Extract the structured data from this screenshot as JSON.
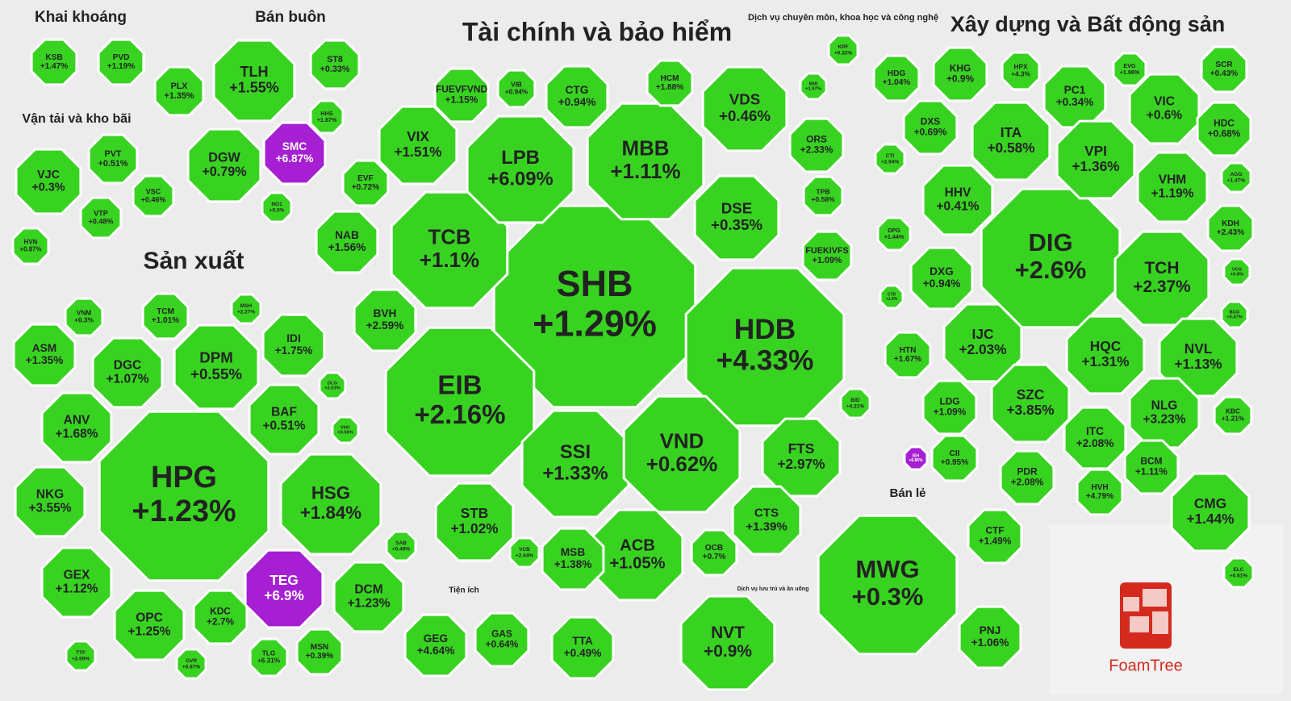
{
  "cell_color": "#38d321",
  "sectors": [
    {
      "title": "Khai khoáng",
      "stocks": [
        {
          "ticker": "KSB",
          "change": "+1.47%"
        },
        {
          "ticker": "PVD",
          "change": "+1.19%"
        }
      ]
    },
    {
      "title": "Bán buôn",
      "stocks": [
        {
          "ticker": "TLH",
          "change": "+1.55%"
        },
        {
          "ticker": "PLX",
          "change": "+1.35%"
        },
        {
          "ticker": "ST8",
          "change": "+0.33%"
        },
        {
          "ticker": "DGW",
          "change": "+0.79%"
        },
        {
          "ticker": "SMC",
          "change": "+6.87%",
          "color": "#a61fd3"
        },
        {
          "ticker": "HHS",
          "change": "+1.87%"
        },
        {
          "ticker": "NO1",
          "change": "+0.3%"
        }
      ]
    },
    {
      "title": "Vận tải và kho bãi",
      "stocks": [
        {
          "ticker": "VJC",
          "change": "+0.3%"
        },
        {
          "ticker": "PVT",
          "change": "+0.51%"
        },
        {
          "ticker": "VSC",
          "change": "+0.46%"
        },
        {
          "ticker": "VTP",
          "change": "+0.48%"
        },
        {
          "ticker": "HVN",
          "change": "+0.87%"
        }
      ]
    },
    {
      "title": "Tài chính và bảo hiểm",
      "stocks": [
        {
          "ticker": "SHB",
          "change": "+1.29%"
        },
        {
          "ticker": "HDB",
          "change": "+4.33%"
        },
        {
          "ticker": "EIB",
          "change": "+2.16%"
        },
        {
          "ticker": "TCB",
          "change": "+1.1%"
        },
        {
          "ticker": "LPB",
          "change": "+6.09%"
        },
        {
          "ticker": "MBB",
          "change": "+1.11%"
        },
        {
          "ticker": "VIX",
          "change": "+1.51%"
        },
        {
          "ticker": "VDS",
          "change": "+0.46%"
        },
        {
          "ticker": "DSE",
          "change": "+0.35%"
        },
        {
          "ticker": "ORS",
          "change": "+2.33%"
        },
        {
          "ticker": "TPB",
          "change": "+0.58%"
        },
        {
          "ticker": "FUEKIVFS",
          "change": "+1.09%"
        },
        {
          "ticker": "BMI",
          "change": "+1.97%"
        },
        {
          "ticker": "HCM",
          "change": "+1.88%"
        },
        {
          "ticker": "CTG",
          "change": "+0.94%"
        },
        {
          "ticker": "VIB",
          "change": "+0.94%"
        },
        {
          "ticker": "FUEVFVND",
          "change": "+1.15%"
        },
        {
          "ticker": "EVF",
          "change": "+0.72%"
        },
        {
          "ticker": "NAB",
          "change": "+1.56%"
        },
        {
          "ticker": "BVH",
          "change": "+2.59%"
        },
        {
          "ticker": "SSI",
          "change": "+1.33%"
        },
        {
          "ticker": "VND",
          "change": "+0.62%"
        },
        {
          "ticker": "FTS",
          "change": "+2.97%"
        },
        {
          "ticker": "CTS",
          "change": "+1.39%"
        },
        {
          "ticker": "OCB",
          "change": "+0.7%"
        },
        {
          "ticker": "ACB",
          "change": "+1.05%"
        },
        {
          "ticker": "MSB",
          "change": "+1.38%"
        },
        {
          "ticker": "STB",
          "change": "+1.02%"
        },
        {
          "ticker": "VCB",
          "change": "+2.44%"
        },
        {
          "ticker": "BID",
          "change": "+4.21%"
        }
      ]
    },
    {
      "title": "Sản xuất",
      "stocks": [
        {
          "ticker": "HPG",
          "change": "+1.23%"
        },
        {
          "ticker": "HSG",
          "change": "+1.84%"
        },
        {
          "ticker": "DPM",
          "change": "+0.55%"
        },
        {
          "ticker": "DGC",
          "change": "+1.07%"
        },
        {
          "ticker": "ASM",
          "change": "+1.35%"
        },
        {
          "ticker": "ANV",
          "change": "+1.68%"
        },
        {
          "ticker": "NKG",
          "change": "+3.55%"
        },
        {
          "ticker": "GEX",
          "change": "+1.12%"
        },
        {
          "ticker": "OPC",
          "change": "+1.25%"
        },
        {
          "ticker": "KDC",
          "change": "+2.7%"
        },
        {
          "ticker": "TEG",
          "change": "+6.9%",
          "color": "#a61fd3"
        },
        {
          "ticker": "DCM",
          "change": "+1.23%"
        },
        {
          "ticker": "MSN",
          "change": "+0.39%"
        },
        {
          "ticker": "TLG",
          "change": "+6.31%"
        },
        {
          "ticker": "GVR",
          "change": "+0.87%"
        },
        {
          "ticker": "TTF",
          "change": "+2.09%"
        },
        {
          "ticker": "BAF",
          "change": "+0.51%"
        },
        {
          "ticker": "IDI",
          "change": "+1.75%"
        },
        {
          "ticker": "VHC",
          "change": "+0.56%"
        },
        {
          "ticker": "DLG",
          "change": "+2.03%"
        },
        {
          "ticker": "SAB",
          "change": "+0.49%"
        },
        {
          "ticker": "TCM",
          "change": "+1.01%"
        },
        {
          "ticker": "VNM",
          "change": "+0.3%"
        },
        {
          "ticker": "MSH",
          "change": "+2.27%"
        }
      ]
    },
    {
      "title": "Dịch vụ chuyên môn, khoa học và công nghệ",
      "stocks": [
        {
          "ticker": "KPF",
          "change": "+0.32%"
        }
      ]
    },
    {
      "title": "Xây dựng và Bất động sản",
      "stocks": [
        {
          "ticker": "DIG",
          "change": "+2.6%"
        },
        {
          "ticker": "TCH",
          "change": "+2.37%"
        },
        {
          "ticker": "HDG",
          "change": "+1.04%"
        },
        {
          "ticker": "KHG",
          "change": "+0.9%"
        },
        {
          "ticker": "HPX",
          "change": "+4.3%"
        },
        {
          "ticker": "EVG",
          "change": "+1.98%"
        },
        {
          "ticker": "SCR",
          "change": "+0.43%"
        },
        {
          "ticker": "PC1",
          "change": "+0.34%"
        },
        {
          "ticker": "DXS",
          "change": "+0.69%"
        },
        {
          "ticker": "ITA",
          "change": "+0.58%"
        },
        {
          "ticker": "VIC",
          "change": "+0.6%"
        },
        {
          "ticker": "HDC",
          "change": "+0.68%"
        },
        {
          "ticker": "VPI",
          "change": "+1.36%"
        },
        {
          "ticker": "CTI",
          "change": "+2.94%"
        },
        {
          "ticker": "HHV",
          "change": "+0.41%"
        },
        {
          "ticker": "VHM",
          "change": "+1.19%"
        },
        {
          "ticker": "AGG",
          "change": "+1.47%"
        },
        {
          "ticker": "DPG",
          "change": "+1.44%"
        },
        {
          "ticker": "KDH",
          "change": "+2.43%"
        },
        {
          "ticker": "DXG",
          "change": "+0.94%"
        },
        {
          "ticker": "VCG",
          "change": "+0.8%"
        },
        {
          "ticker": "CTD",
          "change": "+1.4%"
        },
        {
          "ticker": "BCG",
          "change": "+0.47%"
        },
        {
          "ticker": "IJC",
          "change": "+2.03%"
        },
        {
          "ticker": "HQC",
          "change": "+1.31%"
        },
        {
          "ticker": "NVL",
          "change": "+1.13%"
        },
        {
          "ticker": "HTN",
          "change": "+1.67%"
        },
        {
          "ticker": "SZC",
          "change": "+3.85%"
        },
        {
          "ticker": "LDG",
          "change": "+1.09%"
        },
        {
          "ticker": "NLG",
          "change": "+3.23%"
        },
        {
          "ticker": "KBC",
          "change": "+1.21%"
        },
        {
          "ticker": "ITC",
          "change": "+2.08%"
        },
        {
          "ticker": "CII",
          "change": "+0.95%"
        },
        {
          "ticker": "BCM",
          "change": "+1.11%"
        },
        {
          "ticker": "PDR",
          "change": "+2.08%"
        },
        {
          "ticker": "HVH",
          "change": "+4.79%"
        },
        {
          "ticker": "IEH",
          "change": "+6.86%",
          "color": "#a61fd3"
        }
      ]
    },
    {
      "title": "Bán lẻ",
      "stocks": [
        {
          "ticker": "MWG",
          "change": "+0.3%"
        },
        {
          "ticker": "CTF",
          "change": "+1.49%"
        },
        {
          "ticker": "PNJ",
          "change": "+1.06%"
        }
      ]
    },
    {
      "title": "Dịch vụ lưu trú và ăn uống",
      "stocks": [
        {
          "ticker": "NVT",
          "change": "+0.9%"
        }
      ]
    },
    {
      "title": "Tiện ích",
      "stocks": [
        {
          "ticker": "GEG",
          "change": "+4.64%"
        },
        {
          "ticker": "GAS",
          "change": "+0.64%"
        },
        {
          "ticker": "TTA",
          "change": "+0.49%"
        }
      ]
    },
    {
      "stocks": [
        {
          "ticker": "CMG",
          "change": "+1.44%"
        },
        {
          "ticker": "ELC",
          "change": "+0.61%"
        }
      ]
    }
  ],
  "logo": "FoamTree"
}
